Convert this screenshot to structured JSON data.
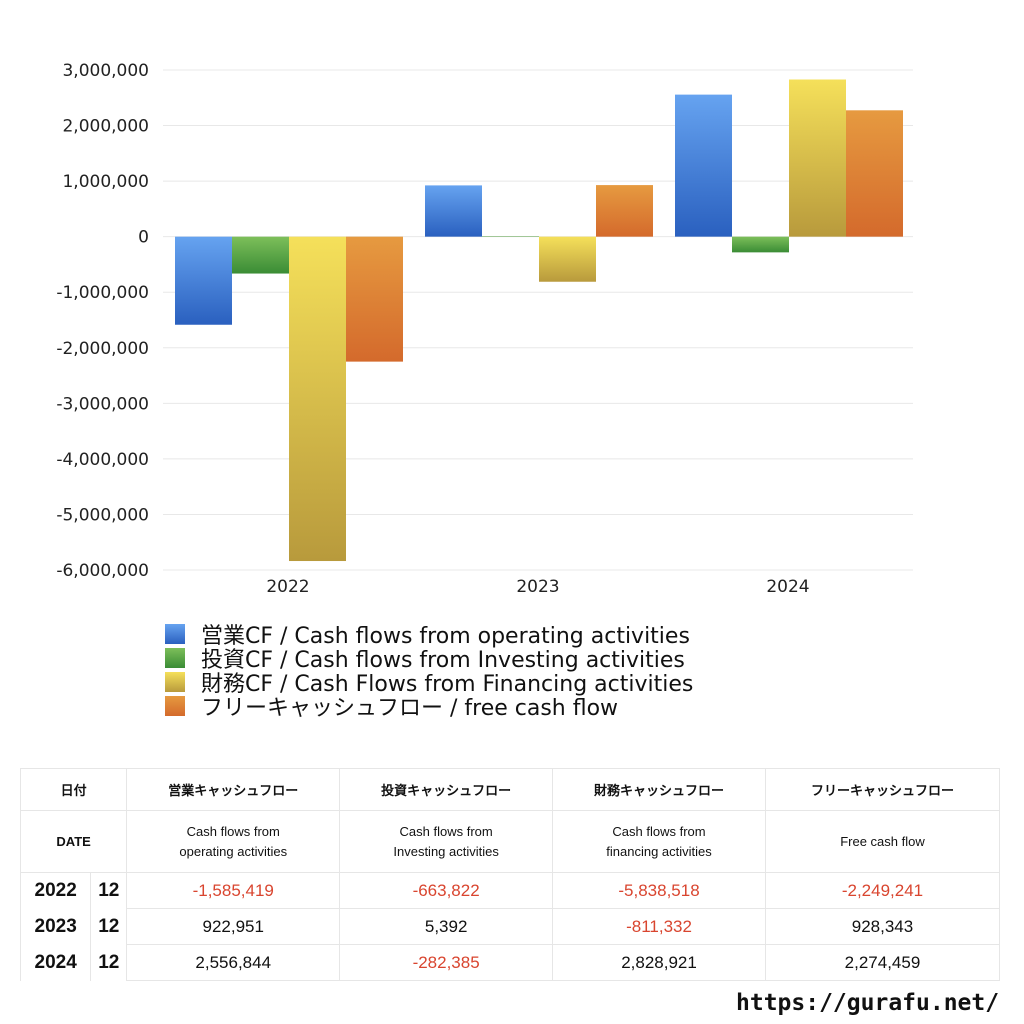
{
  "chart_data": {
    "type": "bar",
    "categories": [
      "2022",
      "2023",
      "2024"
    ],
    "ylim": [
      -6000000,
      3000000
    ],
    "yticks": [
      3000000,
      2000000,
      1000000,
      0,
      -1000000,
      -2000000,
      -3000000,
      -4000000,
      -5000000,
      -6000000
    ],
    "ytick_labels": [
      "3,000,000",
      "2,000,000",
      "1,000,000",
      "0",
      "-1,000,000",
      "-2,000,000",
      "-3,000,000",
      "-4,000,000",
      "-5,000,000",
      "-6,000,000"
    ],
    "grid": true,
    "legend_position": "bottom-left",
    "series": [
      {
        "name": "営業CF / Cash flows from operating activities",
        "values": [
          -1585419,
          922951,
          2556844
        ],
        "color_top": "#66a3f0",
        "color_bottom": "#2a60bf"
      },
      {
        "name": "投資CF / Cash flows from Investing activities",
        "values": [
          -663822,
          5392,
          -282385
        ],
        "color_top": "#7dbf5a",
        "color_bottom": "#3a8c35"
      },
      {
        "name": "財務CF / Cash Flows from Financing activities",
        "values": [
          -5838518,
          -811332,
          2828921
        ],
        "color_top": "#f5e05a",
        "color_bottom": "#b89a3c"
      },
      {
        "name": "フリーキャッシュフロー / free cash flow",
        "values": [
          -2249241,
          928343,
          2274459
        ],
        "color_top": "#e69a40",
        "color_bottom": "#d46a2c"
      }
    ]
  },
  "table": {
    "header_jp": [
      "日付",
      "営業キャッシュフロー",
      "投資キャッシュフロー",
      "財務キャッシュフロー",
      "フリーキャッシュフロー"
    ],
    "header_en": [
      "DATE",
      "Cash flows from\noperating activities",
      "Cash flows from\nInvesting activities",
      "Cash flows from\nfinancing activities",
      "Free cash flow"
    ],
    "rows": [
      {
        "year": "2022",
        "month": "12",
        "cells": [
          "-1,585,419",
          "-663,822",
          "-5,838,518",
          "-2,249,241"
        ]
      },
      {
        "year": "2023",
        "month": "12",
        "cells": [
          "922,951",
          "5,392",
          "-811,332",
          "928,343"
        ]
      },
      {
        "year": "2024",
        "month": "12",
        "cells": [
          "2,556,844",
          "-282,385",
          "2,828,921",
          "2,274,459"
        ]
      }
    ],
    "negative_color": "#d9452f"
  },
  "footer": {
    "site": "https://gurafu.net/"
  }
}
